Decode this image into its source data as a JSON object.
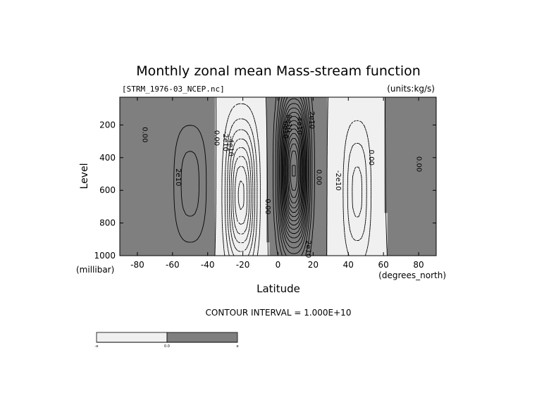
{
  "chart_data": {
    "type": "contour",
    "title": "Monthly zonal mean Mass-stream function",
    "subtitle_left": "[STRM_1976-03_NCEP.nc]",
    "subtitle_right": "(units:kg/s)",
    "xlabel": "Latitude",
    "xunit": "(degrees_north)",
    "ylabel": "Level",
    "yunit": "(millibar)",
    "xlim": [
      -90,
      90
    ],
    "ylim": [
      1000,
      30
    ],
    "y_reversed": true,
    "x_ticks": [
      -80,
      -60,
      -40,
      -20,
      0,
      20,
      40,
      60,
      80
    ],
    "y_ticks": [
      200,
      400,
      600,
      800,
      1000
    ],
    "contour_interval_text": "CONTOUR INTERVAL = 1.000E+10",
    "contour_interval": 10000000000.0,
    "shading": {
      "negative": "#f0f0f0",
      "positive": "#7f7f7f"
    },
    "line_style": {
      "positive": "solid",
      "negative": "dashed"
    },
    "contour_labels": [
      {
        "text": "0.00",
        "lat": -77,
        "p": 260
      },
      {
        "text": "2e10",
        "lat": -58,
        "p": 520
      },
      {
        "text": "0.00",
        "lat": -36,
        "p": 280
      },
      {
        "text": "-2e10",
        "lat": -31,
        "p": 300
      },
      {
        "text": "-4e10",
        "lat": -28,
        "p": 330
      },
      {
        "text": "0.00",
        "lat": -7,
        "p": 700
      },
      {
        "text": "8e10",
        "lat": 5,
        "p": 190
      },
      {
        "text": "6e10",
        "lat": 3,
        "p": 230
      },
      {
        "text": "4e10",
        "lat": 11,
        "p": 205
      },
      {
        "text": "2e10",
        "lat": 18,
        "p": 170
      },
      {
        "text": "0.00",
        "lat": 22,
        "p": 520
      },
      {
        "text": "-2e10",
        "lat": 33,
        "p": 540
      },
      {
        "text": "0.00",
        "lat": 52,
        "p": 400
      },
      {
        "text": "0.00",
        "lat": 79,
        "p": 440
      },
      {
        "text": "2e10",
        "lat": 16,
        "p": 960
      }
    ],
    "cells": [
      {
        "sign": 1,
        "amp": 26000000000.0,
        "lat": -50,
        "p": 560,
        "wlat": 8.5,
        "wp": 330,
        "shape": 0.8
      },
      {
        "sign": -1,
        "amp": 83000000000.0,
        "lat": -21,
        "p": 630,
        "wlat": 7.0,
        "wp": 360,
        "shape": 0.8
      },
      {
        "sign": 1,
        "amp": 182000000000.0,
        "lat": 9,
        "p": 480,
        "wlat": 6.5,
        "wp": 380,
        "shape": 0.8
      },
      {
        "sign": -1,
        "amp": 34000000000.0,
        "lat": 45,
        "p": 610,
        "wlat": 6.5,
        "wp": 360,
        "shape": 0.8
      },
      {
        "sign": 1,
        "amp": 7000000000.0,
        "lat": 72,
        "p": 480,
        "wlat": 5.0,
        "wp": 300,
        "shape": 0.8
      }
    ],
    "colorbar": {
      "labels": [
        "-e",
        "0.0",
        "e"
      ]
    }
  }
}
